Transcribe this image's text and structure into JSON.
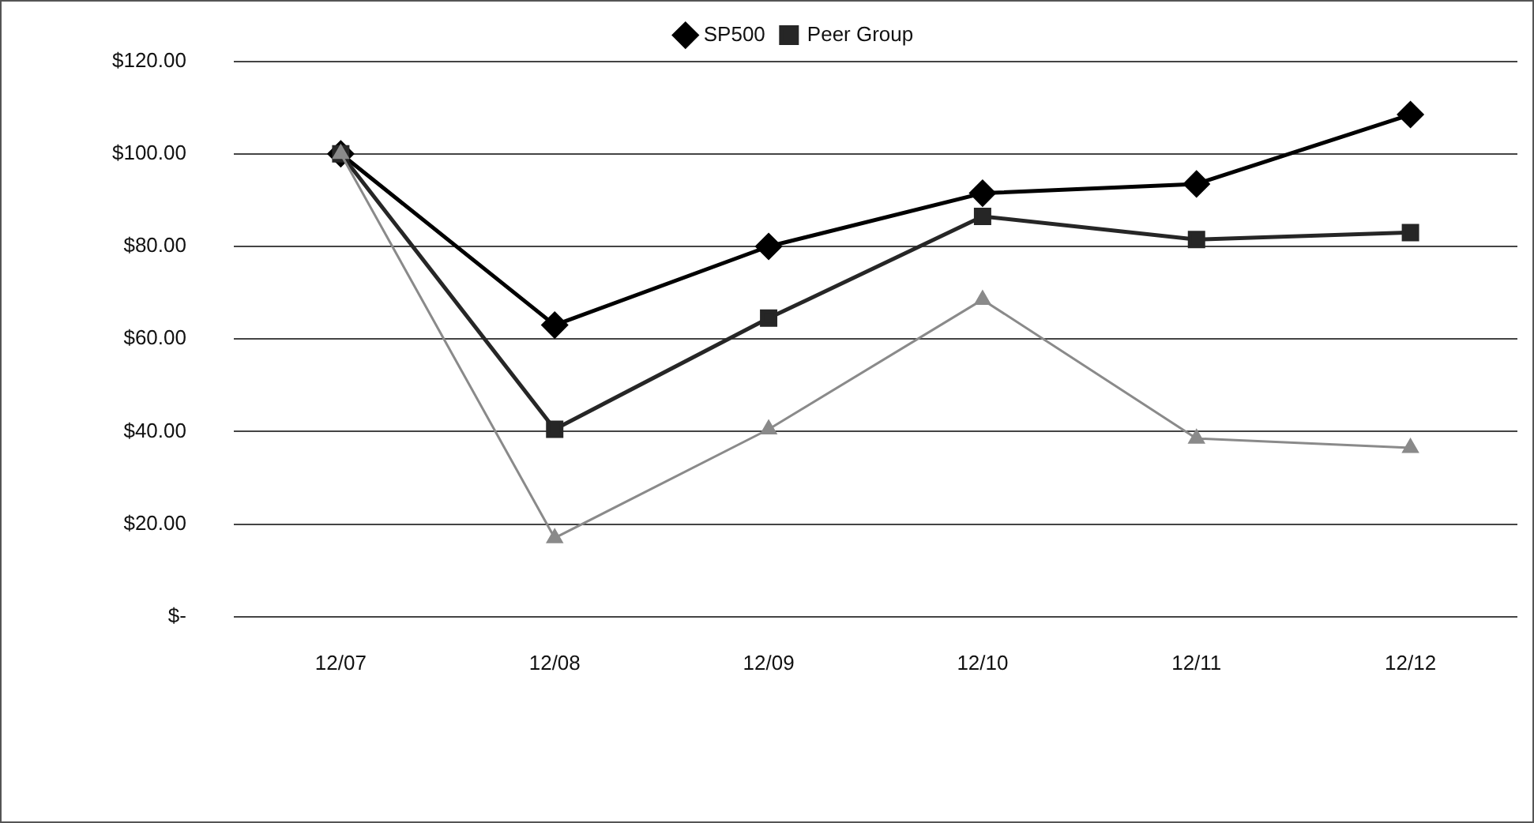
{
  "chart_data": {
    "type": "line",
    "categories": [
      "12/07",
      "12/08",
      "12/09",
      "12/10",
      "12/11",
      "12/12"
    ],
    "series": [
      {
        "name": "SP500",
        "color": "#000000",
        "marker": "diamond",
        "values": [
          100,
          63,
          80,
          91.5,
          93.5,
          108.5
        ]
      },
      {
        "name": "Peer Group",
        "color": "#262626",
        "marker": "square",
        "values": [
          100,
          40.5,
          64.5,
          86.5,
          81.5,
          83
        ]
      },
      {
        "color": "#8a8a8a",
        "marker": "triangle",
        "values": [
          100,
          17,
          40.5,
          68.5,
          38.5,
          36.5
        ]
      }
    ],
    "ylim": [
      0,
      120
    ],
    "yticks": [
      {
        "value": 0,
        "label": "$-"
      },
      {
        "value": 20,
        "label": "$20.00"
      },
      {
        "value": 40,
        "label": "$40.00"
      },
      {
        "value": 60,
        "label": "$60.00"
      },
      {
        "value": 80,
        "label": "$80.00"
      },
      {
        "value": 100,
        "label": "$100.00"
      },
      {
        "value": 120,
        "label": "$120.00"
      }
    ],
    "grid": "y",
    "legend": "top"
  }
}
